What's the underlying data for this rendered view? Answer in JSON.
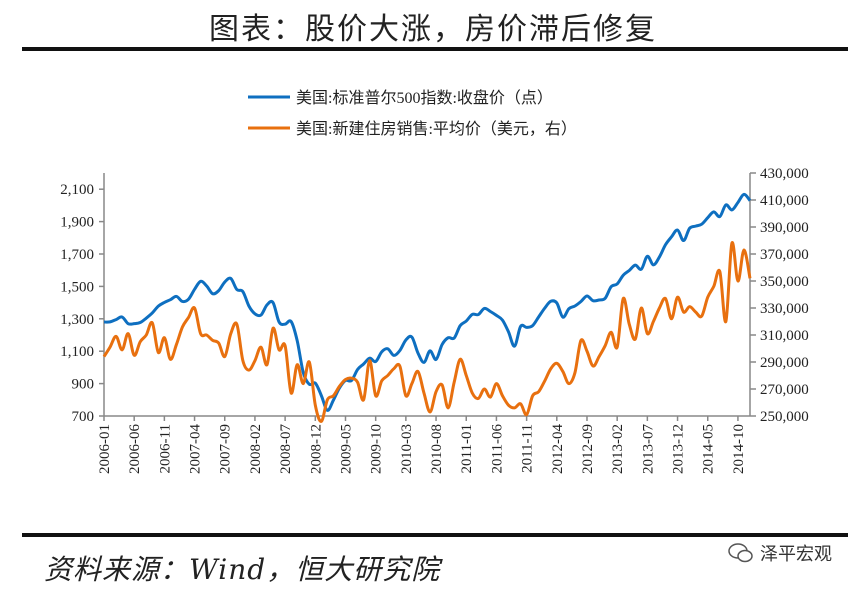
{
  "title": "图表：股价大涨，房价滞后修复",
  "source": "资料来源：Wind，恒大研究院",
  "watermark": "泽平宏观",
  "chart_data": {
    "type": "line",
    "title": "",
    "legend_position": "top-center",
    "grid": false,
    "x": [
      "2006-01",
      "2006-02",
      "2006-03",
      "2006-04",
      "2006-05",
      "2006-06",
      "2006-07",
      "2006-08",
      "2006-09",
      "2006-10",
      "2006-11",
      "2006-12",
      "2007-01",
      "2007-02",
      "2007-03",
      "2007-04",
      "2007-05",
      "2007-06",
      "2007-07",
      "2007-08",
      "2007-09",
      "2007-10",
      "2007-11",
      "2007-12",
      "2008-01",
      "2008-02",
      "2008-03",
      "2008-04",
      "2008-05",
      "2008-06",
      "2008-07",
      "2008-08",
      "2008-09",
      "2008-10",
      "2008-11",
      "2008-12",
      "2009-01",
      "2009-02",
      "2009-03",
      "2009-04",
      "2009-05",
      "2009-06",
      "2009-07",
      "2009-08",
      "2009-09",
      "2009-10",
      "2009-11",
      "2009-12",
      "2010-01",
      "2010-02",
      "2010-03",
      "2010-04",
      "2010-05",
      "2010-06",
      "2010-07",
      "2010-08",
      "2010-09",
      "2010-10",
      "2010-11",
      "2010-12",
      "2011-01",
      "2011-02",
      "2011-03",
      "2011-04",
      "2011-05",
      "2011-06",
      "2011-07",
      "2011-08",
      "2011-09",
      "2011-10",
      "2011-11",
      "2011-12",
      "2012-01",
      "2012-02",
      "2012-03",
      "2012-04",
      "2012-05",
      "2012-06",
      "2012-07",
      "2012-08",
      "2012-09",
      "2012-10",
      "2012-11",
      "2012-12",
      "2013-01",
      "2013-02",
      "2013-03",
      "2013-04",
      "2013-05",
      "2013-06",
      "2013-07",
      "2013-08",
      "2013-09",
      "2013-10",
      "2013-11",
      "2013-12",
      "2014-01",
      "2014-02",
      "2014-03",
      "2014-04",
      "2014-05",
      "2014-06",
      "2014-07",
      "2014-08",
      "2014-09",
      "2014-10",
      "2014-11",
      "2014-12"
    ],
    "x_tick_labels": [
      "2006-01",
      "2006-06",
      "2006-11",
      "2007-04",
      "2007-09",
      "2008-02",
      "2008-07",
      "2008-12",
      "2009-05",
      "2009-10",
      "2010-03",
      "2010-08",
      "2011-01",
      "2011-06",
      "2011-11",
      "2012-04",
      "2012-09",
      "2013-02",
      "2013-07",
      "2013-12",
      "2014-05",
      "2014-10"
    ],
    "y_left": {
      "lim": [
        700,
        2200
      ],
      "ticks": [
        "700",
        "900",
        "1,100",
        "1,300",
        "1,500",
        "1,700",
        "1,900",
        "2,100"
      ],
      "tick_values": [
        700,
        900,
        1100,
        1300,
        1500,
        1700,
        1900,
        2100
      ]
    },
    "y_right": {
      "lim": [
        250000,
        430000
      ],
      "ticks": [
        "250,000",
        "270,000",
        "290,000",
        "310,000",
        "330,000",
        "350,000",
        "370,000",
        "390,000",
        "410,000",
        "430,000"
      ],
      "tick_values": [
        250000,
        270000,
        290000,
        310000,
        330000,
        350000,
        370000,
        390000,
        410000,
        430000
      ]
    },
    "series": [
      {
        "name": "美国:标准普尔500指数:收盘价（点）",
        "axis": "left",
        "color": "#0e6fc0",
        "values": [
          1280,
          1281,
          1295,
          1311,
          1270,
          1270,
          1277,
          1304,
          1336,
          1378,
          1401,
          1418,
          1438,
          1407,
          1421,
          1482,
          1531,
          1503,
          1455,
          1474,
          1527,
          1549,
          1481,
          1468,
          1379,
          1331,
          1323,
          1386,
          1400,
          1280,
          1267,
          1283,
          1165,
          969,
          896,
          903,
          826,
          735,
          798,
          873,
          919,
          919,
          987,
          1021,
          1057,
          1036,
          1096,
          1115,
          1074,
          1104,
          1169,
          1187,
          1089,
          1031,
          1102,
          1049,
          1141,
          1183,
          1181,
          1258,
          1286,
          1327,
          1326,
          1364,
          1345,
          1321,
          1292,
          1219,
          1131,
          1253,
          1247,
          1258,
          1312,
          1366,
          1408,
          1398,
          1310,
          1362,
          1379,
          1407,
          1441,
          1412,
          1416,
          1426,
          1498,
          1515,
          1569,
          1598,
          1631,
          1606,
          1686,
          1633,
          1682,
          1757,
          1806,
          1848,
          1783,
          1859,
          1872,
          1884,
          1924,
          1960,
          1931,
          2003,
          1972,
          2018,
          2068,
          2030
        ]
      },
      {
        "name": "美国:新建住房销售:平均价（美元，右）",
        "axis": "right",
        "color": "#e8700f",
        "values": [
          294000,
          301000,
          309000,
          299000,
          311000,
          295000,
          305000,
          310000,
          319000,
          297000,
          308000,
          292000,
          303000,
          316000,
          323000,
          330000,
          311000,
          310000,
          306000,
          304000,
          294000,
          311000,
          318000,
          291000,
          284000,
          291000,
          301000,
          288000,
          315000,
          299000,
          302000,
          267000,
          288000,
          274000,
          290000,
          258000,
          246000,
          262000,
          265000,
          272000,
          277000,
          278000,
          275000,
          262000,
          291000,
          265000,
          276000,
          280000,
          285000,
          287000,
          265000,
          274000,
          283000,
          267000,
          253000,
          268000,
          273000,
          256000,
          275000,
          292000,
          280000,
          267000,
          263000,
          270000,
          264000,
          274000,
          265000,
          258000,
          256000,
          259000,
          251000,
          265000,
          268000,
          276000,
          285000,
          289000,
          283000,
          274000,
          282000,
          306000,
          298000,
          287000,
          294000,
          302000,
          312000,
          301000,
          337000,
          318000,
          307000,
          330000,
          311000,
          320000,
          330000,
          337000,
          322000,
          338000,
          327000,
          331000,
          327000,
          324000,
          338000,
          346000,
          357000,
          320000,
          378000,
          350000,
          373000,
          352000
        ]
      }
    ]
  }
}
